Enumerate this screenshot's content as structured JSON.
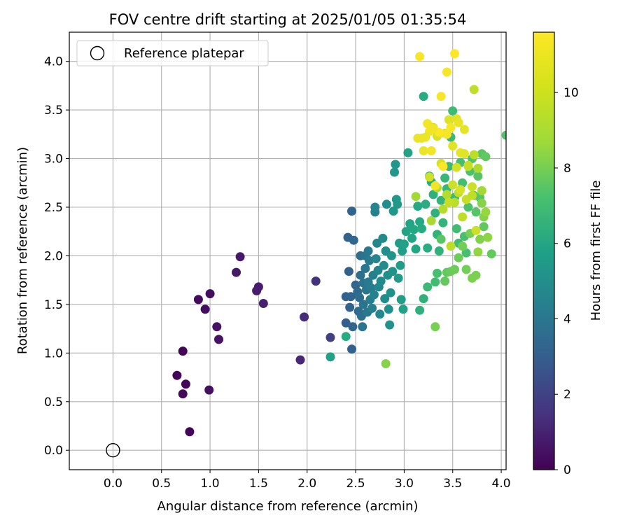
{
  "chart_data": {
    "type": "scatter",
    "title": "FOV centre drift starting at 2025/01/05 01:35:54",
    "xlabel": "Angular distance from reference (arcmin)",
    "ylabel": "Rotation from reference (arcmin)",
    "xlim": [
      -0.45,
      4.05
    ],
    "ylim": [
      -0.2,
      4.3
    ],
    "xticks": [
      "0.0",
      "0.5",
      "1.0",
      "1.5",
      "2.0",
      "2.5",
      "3.0",
      "3.5",
      "4.0"
    ],
    "yticks": [
      "0.0",
      "0.5",
      "1.0",
      "1.5",
      "2.0",
      "2.5",
      "3.0",
      "3.5",
      "4.0"
    ],
    "grid": true,
    "legend": {
      "placement": "top-left",
      "entries": [
        "Reference platepar"
      ]
    },
    "reference_point": {
      "x": 0.0,
      "y": 0.0,
      "label": "Reference platepar"
    },
    "colorbar": {
      "label": "Hours from first FF file",
      "range": [
        0,
        11.6
      ],
      "ticks": [
        "0",
        "2",
        "4",
        "6",
        "8",
        "10"
      ],
      "colormap": "viridis"
    },
    "points": [
      [
        0.66,
        0.77,
        0.1
      ],
      [
        0.72,
        1.02,
        0.1
      ],
      [
        0.75,
        0.68,
        0.2
      ],
      [
        0.72,
        0.58,
        0.2
      ],
      [
        0.79,
        0.19,
        0.1
      ],
      [
        0.88,
        1.55,
        0.3
      ],
      [
        0.95,
        1.45,
        0.4
      ],
      [
        1.0,
        1.61,
        0.4
      ],
      [
        0.99,
        0.62,
        0.5
      ],
      [
        1.07,
        1.27,
        0.6
      ],
      [
        1.09,
        1.14,
        0.6
      ],
      [
        1.27,
        1.83,
        0.7
      ],
      [
        1.31,
        1.99,
        0.8
      ],
      [
        1.48,
        1.64,
        0.9
      ],
      [
        1.5,
        1.68,
        0.9
      ],
      [
        1.55,
        1.51,
        1.0
      ],
      [
        1.93,
        0.93,
        1.3
      ],
      [
        1.97,
        1.37,
        1.5
      ],
      [
        2.09,
        1.74,
        1.7
      ],
      [
        2.24,
        1.16,
        2.2
      ],
      [
        2.4,
        1.31,
        3.5
      ],
      [
        2.4,
        1.58,
        3.6
      ],
      [
        2.42,
        2.19,
        3.7
      ],
      [
        2.43,
        1.84,
        3.6
      ],
      [
        2.44,
        1.47,
        3.7
      ],
      [
        2.45,
        1.58,
        3.8
      ],
      [
        2.46,
        2.46,
        3.7
      ],
      [
        2.46,
        1.04,
        3.6
      ],
      [
        2.47,
        1.27,
        3.8
      ],
      [
        2.48,
        2.16,
        3.9
      ],
      [
        2.5,
        1.7,
        3.9
      ],
      [
        2.52,
        1.63,
        4.0
      ],
      [
        2.53,
        1.43,
        4.1
      ],
      [
        2.54,
        1.57,
        4.1
      ],
      [
        2.55,
        2.0,
        4.2
      ],
      [
        2.55,
        1.8,
        4.3
      ],
      [
        2.56,
        1.38,
        4.3
      ],
      [
        2.57,
        1.27,
        4.4
      ],
      [
        2.58,
        1.72,
        4.4
      ],
      [
        2.58,
        1.5,
        4.5
      ],
      [
        2.6,
        2.0,
        4.5
      ],
      [
        2.6,
        1.87,
        4.6
      ],
      [
        2.61,
        1.65,
        4.6
      ],
      [
        2.62,
        1.42,
        4.7
      ],
      [
        2.63,
        2.05,
        4.7
      ],
      [
        2.63,
        1.73,
        4.8
      ],
      [
        2.64,
        1.95,
        4.8
      ],
      [
        2.65,
        1.55,
        4.9
      ],
      [
        2.66,
        1.67,
        4.9
      ],
      [
        2.67,
        1.46,
        5.0
      ],
      [
        2.68,
        1.8,
        5.0
      ],
      [
        2.69,
        1.6,
        5.1
      ],
      [
        2.7,
        2.45,
        5.1
      ],
      [
        2.7,
        2.5,
        5.2
      ],
      [
        2.71,
        1.97,
        5.2
      ],
      [
        2.72,
        2.13,
        5.3
      ],
      [
        2.73,
        1.85,
        5.3
      ],
      [
        2.74,
        1.68,
        5.4
      ],
      [
        2.75,
        1.4,
        5.4
      ],
      [
        2.76,
        1.74,
        5.5
      ],
      [
        2.78,
        2.18,
        5.5
      ],
      [
        2.79,
        1.9,
        5.6
      ],
      [
        2.8,
        1.56,
        5.6
      ],
      [
        2.81,
        2.05,
        5.7
      ],
      [
        2.82,
        2.53,
        5.7
      ],
      [
        2.83,
        1.8,
        5.8
      ],
      [
        2.84,
        1.45,
        5.8
      ],
      [
        2.85,
        1.29,
        5.9
      ],
      [
        2.86,
        1.62,
        5.9
      ],
      [
        2.87,
        2.0,
        6.0
      ],
      [
        2.88,
        1.84,
        6.0
      ],
      [
        2.89,
        2.46,
        6.1
      ],
      [
        2.9,
        2.86,
        6.1
      ],
      [
        2.91,
        2.94,
        6.2
      ],
      [
        2.92,
        2.58,
        6.2
      ],
      [
        2.93,
        2.53,
        6.3
      ],
      [
        2.94,
        1.77,
        6.3
      ],
      [
        2.95,
        2.13,
        6.4
      ],
      [
        2.96,
        1.9,
        6.4
      ],
      [
        2.97,
        1.55,
        6.5
      ],
      [
        2.98,
        2.05,
        6.5
      ],
      [
        2.99,
        1.45,
        6.6
      ],
      [
        3.0,
        2.12,
        6.6
      ],
      [
        3.02,
        2.25,
        6.7
      ],
      [
        3.04,
        3.06,
        6.7
      ],
      [
        3.06,
        2.33,
        6.8
      ],
      [
        3.08,
        2.18,
        6.8
      ],
      [
        3.1,
        2.27,
        6.9
      ],
      [
        3.12,
        2.07,
        6.9
      ],
      [
        3.14,
        2.51,
        7.0
      ],
      [
        3.16,
        2.35,
        7.0
      ],
      [
        3.18,
        2.28,
        7.1
      ],
      [
        3.2,
        3.64,
        7.1
      ],
      [
        3.22,
        2.53,
        7.2
      ],
      [
        3.24,
        2.08,
        7.2
      ],
      [
        3.26,
        2.82,
        7.3
      ],
      [
        3.28,
        2.76,
        7.3
      ],
      [
        3.3,
        2.63,
        7.4
      ],
      [
        3.32,
        2.44,
        7.4
      ],
      [
        3.34,
        2.22,
        7.5
      ],
      [
        3.36,
        2.05,
        7.5
      ],
      [
        3.38,
        2.57,
        7.6
      ],
      [
        3.4,
        2.34,
        7.6
      ],
      [
        3.42,
        2.8,
        7.7
      ],
      [
        3.44,
        2.69,
        7.7
      ],
      [
        3.46,
        2.92,
        7.8
      ],
      [
        3.48,
        3.22,
        7.8
      ],
      [
        3.5,
        3.49,
        7.9
      ],
      [
        3.52,
        2.6,
        7.9
      ],
      [
        3.54,
        2.28,
        8.0
      ],
      [
        3.56,
        2.13,
        8.0
      ],
      [
        3.58,
        2.96,
        8.1
      ],
      [
        3.6,
        2.75,
        8.1
      ],
      [
        3.62,
        2.2,
        8.2
      ],
      [
        3.64,
        2.03,
        8.2
      ],
      [
        3.66,
        2.5,
        8.3
      ],
      [
        3.68,
        2.87,
        8.3
      ],
      [
        3.7,
        3.0,
        8.4
      ],
      [
        3.72,
        2.62,
        8.4
      ],
      [
        3.74,
        2.45,
        8.5
      ],
      [
        3.76,
        2.82,
        8.5
      ],
      [
        3.78,
        2.6,
        8.6
      ],
      [
        3.8,
        3.05,
        8.6
      ],
      [
        3.82,
        2.3,
        8.7
      ],
      [
        3.84,
        3.02,
        8.7
      ],
      [
        3.9,
        2.02,
        8.8
      ],
      [
        2.4,
        1.17,
        7.1
      ],
      [
        2.24,
        0.96,
        6.6
      ],
      [
        3.16,
        1.44,
        7.4
      ],
      [
        3.2,
        1.56,
        7.4
      ],
      [
        3.24,
        1.68,
        7.8
      ],
      [
        3.32,
        1.73,
        8.0
      ],
      [
        3.34,
        1.82,
        8.2
      ],
      [
        3.38,
        2.17,
        8.6
      ],
      [
        3.42,
        1.74,
        8.8
      ],
      [
        3.44,
        1.83,
        8.8
      ],
      [
        3.48,
        1.84,
        8.9
      ],
      [
        3.52,
        1.86,
        9.0
      ],
      [
        3.56,
        1.98,
        9.0
      ],
      [
        3.6,
        2.1,
        9.1
      ],
      [
        3.64,
        1.86,
        9.1
      ],
      [
        3.68,
        2.23,
        9.2
      ],
      [
        3.7,
        1.77,
        9.3
      ],
      [
        3.74,
        1.8,
        9.3
      ],
      [
        3.78,
        2.17,
        9.4
      ],
      [
        3.8,
        2.54,
        9.5
      ],
      [
        3.82,
        2.4,
        9.5
      ],
      [
        3.86,
        2.19,
        9.6
      ],
      [
        2.81,
        0.89,
        9.5
      ],
      [
        3.32,
        1.27,
        9.2
      ],
      [
        3.12,
        2.61,
        10.0
      ],
      [
        3.28,
        2.36,
        10.1
      ],
      [
        3.34,
        2.7,
        10.2
      ],
      [
        3.4,
        2.48,
        10.3
      ],
      [
        3.44,
        2.63,
        10.3
      ],
      [
        3.48,
        2.1,
        10.4
      ],
      [
        3.52,
        2.55,
        10.4
      ],
      [
        3.56,
        2.65,
        10.5
      ],
      [
        3.6,
        2.4,
        10.5
      ],
      [
        3.64,
        2.58,
        10.6
      ],
      [
        3.66,
        2.92,
        10.6
      ],
      [
        3.7,
        2.71,
        10.7
      ],
      [
        3.72,
        3.71,
        10.5
      ],
      [
        3.74,
        2.26,
        10.7
      ],
      [
        3.26,
        2.81,
        10.8
      ],
      [
        3.3,
        3.32,
        10.8
      ],
      [
        3.34,
        3.23,
        10.9
      ],
      [
        3.38,
        2.95,
        10.9
      ],
      [
        3.42,
        3.26,
        11.0
      ],
      [
        3.46,
        3.4,
        11.0
      ],
      [
        3.5,
        3.13,
        11.1
      ],
      [
        3.54,
        3.41,
        11.1
      ],
      [
        3.58,
        3.06,
        11.2
      ],
      [
        3.62,
        3.3,
        11.2
      ],
      [
        3.18,
        3.21,
        11.3
      ],
      [
        3.2,
        3.08,
        11.3
      ],
      [
        3.14,
        3.21,
        11.3
      ],
      [
        3.24,
        3.36,
        11.4
      ],
      [
        3.28,
        3.08,
        11.4
      ],
      [
        3.32,
        2.72,
        11.4
      ],
      [
        3.38,
        3.64,
        11.5
      ],
      [
        3.44,
        3.89,
        11.5
      ],
      [
        3.16,
        4.05,
        11.5
      ],
      [
        3.52,
        4.08,
        11.6
      ],
      [
        3.48,
        3.32,
        11.5
      ],
      [
        3.44,
        3.25,
        11.5
      ],
      [
        3.4,
        2.92,
        11.6
      ],
      [
        3.36,
        3.27,
        11.6
      ],
      [
        3.3,
        3.31,
        11.4
      ],
      [
        3.26,
        3.28,
        11.4
      ],
      [
        3.22,
        3.22,
        11.3
      ],
      [
        3.56,
        3.37,
        11.2
      ],
      [
        3.62,
        3.05,
        11.1
      ],
      [
        3.58,
        2.68,
        10.9
      ],
      [
        3.54,
        2.91,
        10.8
      ],
      [
        3.5,
        2.73,
        10.7
      ],
      [
        3.46,
        2.55,
        10.6
      ],
      [
        3.66,
        2.93,
        10.6
      ],
      [
        3.7,
        2.62,
        10.5
      ],
      [
        3.72,
        3.04,
        10.4
      ],
      [
        4.05,
        3.24,
        8.4
      ],
      [
        3.76,
        2.9,
        10.2
      ],
      [
        3.8,
        2.67,
        10.0
      ],
      [
        3.84,
        2.45,
        9.8
      ],
      [
        3.76,
        2.04,
        9.7
      ]
    ]
  }
}
